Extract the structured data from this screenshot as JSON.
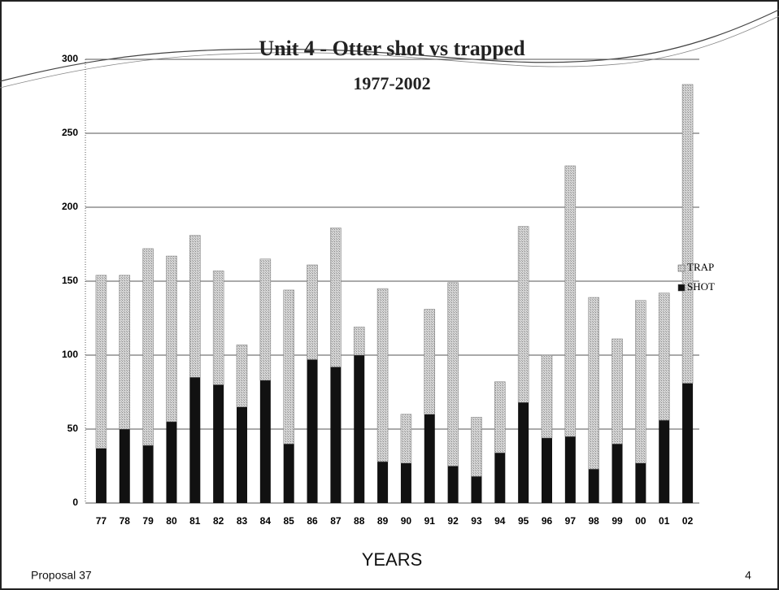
{
  "chart_data": {
    "type": "stacked_bar",
    "title": "Unit 4 - Otter shot vs trapped",
    "subtitle": "1977-2002",
    "x_label": "YEARS",
    "categories": [
      "77",
      "78",
      "79",
      "80",
      "81",
      "82",
      "83",
      "84",
      "85",
      "86",
      "87",
      "88",
      "89",
      "90",
      "91",
      "92",
      "93",
      "94",
      "95",
      "96",
      "97",
      "98",
      "99",
      "00",
      "01",
      "02"
    ],
    "series": [
      {
        "name": "SHOT",
        "color": "#111111",
        "values": [
          37,
          50,
          39,
          55,
          85,
          80,
          65,
          83,
          40,
          97,
          92,
          100,
          28,
          27,
          60,
          25,
          18,
          34,
          68,
          44,
          45,
          23,
          40,
          27,
          56,
          81
        ]
      },
      {
        "name": "TRAP",
        "color": "#c8c8c8",
        "values": [
          117,
          104,
          133,
          112,
          96,
          77,
          42,
          82,
          104,
          64,
          94,
          19,
          117,
          33,
          71,
          124,
          40,
          48,
          119,
          56,
          183,
          116,
          71,
          110,
          86,
          202
        ]
      }
    ],
    "ylim": [
      0,
      300
    ],
    "yticks": [
      0,
      50,
      100,
      150,
      200,
      250,
      300
    ],
    "grid": true,
    "legend": "right"
  },
  "footer": {
    "left": "Proposal 37",
    "page": "4"
  }
}
